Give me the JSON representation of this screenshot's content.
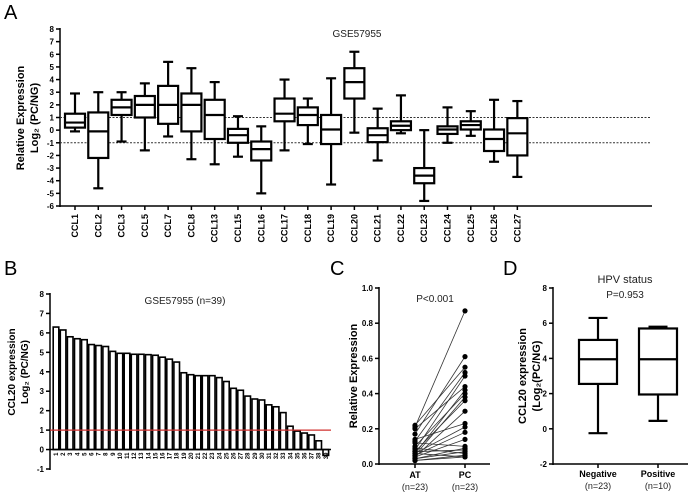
{
  "chart_data": [
    {
      "panel": "A",
      "type": "boxplot",
      "title": "GSE57955",
      "ylabel": [
        "Relative Expression",
        "Log₂ (PC/NG)"
      ],
      "ylim": [
        -6,
        8
      ],
      "yticks": [
        -6,
        -5,
        -4,
        -3,
        -2,
        -1,
        0,
        1,
        2,
        3,
        4,
        5,
        6,
        7,
        8
      ],
      "reference_lines": [
        1,
        -1
      ],
      "categories": [
        "CCL1",
        "CCL2",
        "CCL3",
        "CCL5",
        "CCL7",
        "CCL8",
        "CCL13",
        "CCL15",
        "CCL16",
        "CCL17",
        "CCL18",
        "CCL19",
        "CCL20",
        "CCL21",
        "CCL22",
        "CCL23",
        "CCL24",
        "CCL25",
        "CCL26",
        "CCL27"
      ],
      "boxes": [
        [
          -0.1,
          0.2,
          0.6,
          1.3,
          2.9
        ],
        [
          -4.6,
          -2.2,
          -0.1,
          1.4,
          3.0
        ],
        [
          -0.9,
          1.2,
          1.8,
          2.4,
          3.0
        ],
        [
          -1.6,
          1.0,
          2.0,
          2.7,
          3.7
        ],
        [
          -0.5,
          0.5,
          2.0,
          3.5,
          5.4
        ],
        [
          -2.3,
          -0.1,
          2.0,
          2.9,
          4.9
        ],
        [
          -2.7,
          -0.7,
          1.2,
          2.4,
          3.8
        ],
        [
          -2.1,
          -1.0,
          -0.4,
          0.1,
          1.1
        ],
        [
          -5.0,
          -2.4,
          -1.5,
          -0.9,
          0.3
        ],
        [
          -1.6,
          0.7,
          1.3,
          2.5,
          4.0
        ],
        [
          -1.1,
          0.4,
          1.2,
          1.8,
          2.5
        ],
        [
          -4.3,
          -1.1,
          0.05,
          1.2,
          4.1
        ],
        [
          -0.2,
          2.5,
          3.8,
          4.9,
          6.2
        ],
        [
          -2.4,
          -0.95,
          -0.4,
          0.15,
          1.7
        ],
        [
          -0.25,
          0.0,
          0.35,
          0.7,
          2.75
        ],
        [
          -5.6,
          -4.2,
          -3.6,
          -3.0,
          0.0
        ],
        [
          -1.0,
          -0.3,
          0.05,
          0.3,
          1.8
        ],
        [
          -0.45,
          0.05,
          0.4,
          0.7,
          1.5
        ],
        [
          -2.5,
          -1.65,
          -0.7,
          0.05,
          2.4
        ],
        [
          -3.7,
          -2.0,
          -0.25,
          0.95,
          2.3
        ]
      ]
    },
    {
      "panel": "B",
      "type": "bar",
      "title": "GSE57955 (n=39)",
      "ylabel": [
        "CCL20 expression",
        "Log₂ (PC/NG)"
      ],
      "ylim": [
        -1,
        8
      ],
      "yticks": [
        -1,
        0,
        1,
        2,
        3,
        4,
        5,
        6,
        7,
        8
      ],
      "reference_line": 1,
      "reference_color": "#d0302f",
      "categories": [
        "1",
        "2",
        "3",
        "4",
        "5",
        "6",
        "7",
        "8",
        "9",
        "10",
        "11",
        "12",
        "13",
        "14",
        "15",
        "16",
        "17",
        "18",
        "19",
        "20",
        "21",
        "22",
        "23",
        "24",
        "25",
        "26",
        "27",
        "28",
        "29",
        "30",
        "31",
        "32",
        "33",
        "34",
        "35",
        "36",
        "37",
        "38",
        "39"
      ],
      "values": [
        6.3,
        6.15,
        5.8,
        5.7,
        5.65,
        5.4,
        5.35,
        5.3,
        5.05,
        4.95,
        4.95,
        4.9,
        4.9,
        4.88,
        4.85,
        4.75,
        4.65,
        4.5,
        3.95,
        3.85,
        3.8,
        3.8,
        3.8,
        3.7,
        3.5,
        3.15,
        3.05,
        2.75,
        2.6,
        2.55,
        2.3,
        2.2,
        1.9,
        1.2,
        0.95,
        0.85,
        0.75,
        0.45,
        -0.3
      ]
    },
    {
      "panel": "C",
      "type": "paired-scatter",
      "title": "P<0.001",
      "ylabel": "Relative Expression",
      "ylim": [
        0,
        1.0
      ],
      "yticks": [
        "0.0",
        "0.2",
        "0.4",
        "0.6",
        "0.8",
        "1.0"
      ],
      "groups": [
        {
          "label": "AT",
          "n": "(n=23)"
        },
        {
          "label": "PC",
          "n": "(n=23)"
        }
      ],
      "AT": [
        0.22,
        0.21,
        0.2,
        0.17,
        0.14,
        0.13,
        0.12,
        0.1,
        0.09,
        0.08,
        0.07,
        0.07,
        0.06,
        0.06,
        0.06,
        0.05,
        0.05,
        0.04,
        0.04,
        0.03,
        0.03,
        0.02,
        0.02
      ],
      "PC": [
        0.87,
        0.61,
        0.55,
        0.52,
        0.5,
        0.44,
        0.42,
        0.4,
        0.38,
        0.36,
        0.3,
        0.23,
        0.21,
        0.18,
        0.14,
        0.1,
        0.09,
        0.08,
        0.07,
        0.06,
        0.05,
        0.04,
        0.04
      ]
    },
    {
      "panel": "D",
      "type": "boxplot",
      "title": "HPV status",
      "subtitle": "P=0.953",
      "ylabel": [
        "CCL20 expression",
        "(Log₂(PC/NG)"
      ],
      "ylim": [
        -2,
        8
      ],
      "yticks": [
        -2,
        0,
        2,
        4,
        6,
        8
      ],
      "groups": [
        {
          "label": "Negative",
          "n": "(n=23)"
        },
        {
          "label": "Positive",
          "n": "(n=10)"
        }
      ],
      "boxes": [
        [
          -0.25,
          2.55,
          3.95,
          5.05,
          6.3
        ],
        [
          0.45,
          1.95,
          3.95,
          5.7,
          5.8
        ]
      ]
    }
  ]
}
